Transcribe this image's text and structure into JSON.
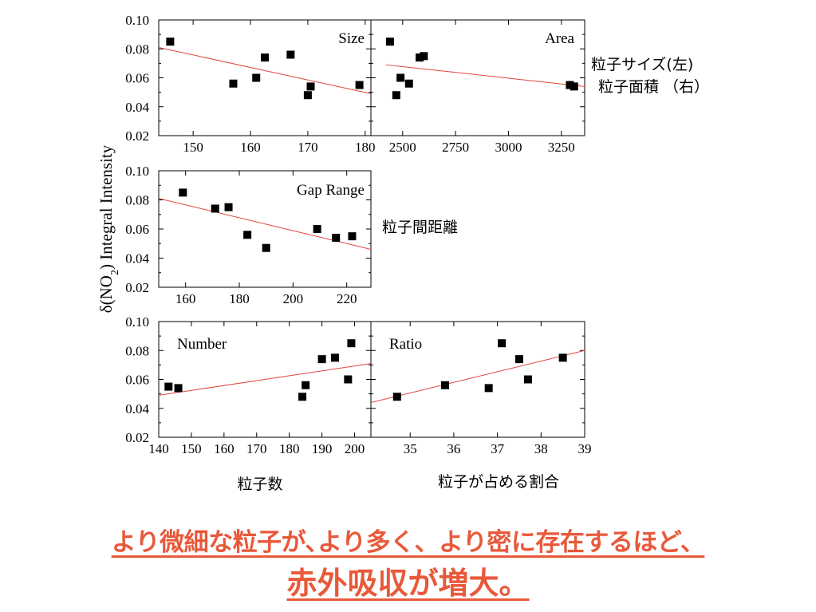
{
  "y_axis_label": {
    "prefix": "δ(NO",
    "sub": "2",
    "suffix": ") Integral Intensity"
  },
  "annotations": {
    "size_area": [
      "粒子サイズ(左)",
      "粒子面積 （右）"
    ],
    "gap": "粒子間距離",
    "number": "粒子数",
    "ratio": "粒子が占める割合"
  },
  "conclusion": {
    "line1": "より微細な粒子が､より多く、より密に存在するほど、",
    "line2": "赤外吸収が増大。"
  },
  "colors": {
    "marker": "#000000",
    "fit_line": "#e0443c",
    "conclusion": "#e8593a"
  },
  "chart_data": [
    {
      "type": "scatter",
      "title": "Size",
      "xlim": [
        144,
        181
      ],
      "ylim": [
        0.02,
        0.1
      ],
      "xticks": [
        150,
        160,
        170,
        180
      ],
      "yticks": [
        0.02,
        0.04,
        0.06,
        0.08,
        0.1
      ],
      "x": [
        146,
        157,
        161,
        162.5,
        167,
        170,
        170.5,
        179
      ],
      "y": [
        0.085,
        0.056,
        0.06,
        0.074,
        0.076,
        0.048,
        0.054,
        0.055
      ],
      "fit": {
        "x": [
          144,
          181
        ],
        "y": [
          0.081,
          0.049
        ]
      }
    },
    {
      "type": "scatter",
      "title": "Area",
      "xlim": [
        2350,
        3360
      ],
      "ylim": [
        0.02,
        0.1
      ],
      "xticks": [
        2500,
        2750,
        3000,
        3250
      ],
      "yticks": [
        0.02,
        0.04,
        0.06,
        0.08,
        0.1
      ],
      "x": [
        2440,
        2470,
        2490,
        2530,
        2580,
        2600,
        3290,
        3310
      ],
      "y": [
        0.085,
        0.048,
        0.06,
        0.056,
        0.074,
        0.075,
        0.055,
        0.054
      ],
      "fit": {
        "x": [
          2420,
          3360
        ],
        "y": [
          0.069,
          0.054
        ]
      }
    },
    {
      "type": "scatter",
      "title": "Gap Range",
      "xlim": [
        150,
        229
      ],
      "ylim": [
        0.02,
        0.1
      ],
      "xticks": [
        160,
        180,
        200,
        220
      ],
      "yticks": [
        0.02,
        0.04,
        0.06,
        0.08,
        0.1
      ],
      "x": [
        159,
        171,
        176,
        183,
        190,
        209,
        216,
        222
      ],
      "y": [
        0.085,
        0.074,
        0.075,
        0.056,
        0.047,
        0.06,
        0.054,
        0.055
      ],
      "fit": {
        "x": [
          150,
          229
        ],
        "y": [
          0.081,
          0.046
        ]
      }
    },
    {
      "type": "scatter",
      "title": "Number",
      "xlim": [
        140,
        205
      ],
      "ylim": [
        0.02,
        0.1
      ],
      "xticks": [
        140,
        150,
        160,
        170,
        180,
        190,
        200
      ],
      "yticks": [
        0.02,
        0.04,
        0.06,
        0.08,
        0.1
      ],
      "x": [
        143,
        146,
        184,
        185,
        190,
        194,
        198,
        199
      ],
      "y": [
        0.055,
        0.054,
        0.048,
        0.056,
        0.074,
        0.075,
        0.06,
        0.085
      ],
      "fit": {
        "x": [
          140,
          205
        ],
        "y": [
          0.049,
          0.071
        ]
      }
    },
    {
      "type": "scatter",
      "title": "Ratio",
      "xlim": [
        34.1,
        39
      ],
      "ylim": [
        0.02,
        0.1
      ],
      "xticks": [
        35,
        36,
        37,
        38,
        39
      ],
      "yticks": [
        0.02,
        0.04,
        0.06,
        0.08,
        0.1
      ],
      "x": [
        34.7,
        35.8,
        36.8,
        37.1,
        37.5,
        37.7,
        38.5
      ],
      "y": [
        0.048,
        0.056,
        0.054,
        0.085,
        0.074,
        0.06,
        0.075
      ],
      "fit": {
        "x": [
          34.1,
          39
        ],
        "y": [
          0.044,
          0.08
        ]
      }
    }
  ]
}
